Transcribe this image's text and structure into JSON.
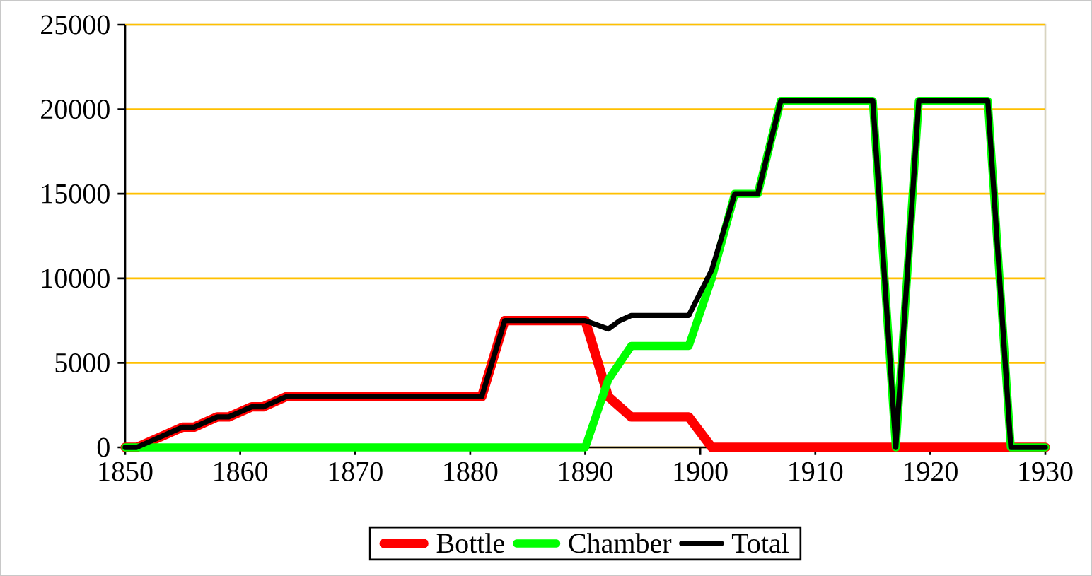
{
  "chart_data": {
    "type": "line",
    "xlim": [
      1850,
      1930
    ],
    "xticks": [
      1850,
      1860,
      1870,
      1880,
      1890,
      1900,
      1910,
      1920,
      1930
    ],
    "ylim": [
      0,
      25000
    ],
    "yticks": [
      0,
      5000,
      10000,
      15000,
      20000,
      25000
    ],
    "grid": "y",
    "legend": "bottom",
    "marker": "none",
    "line_style": "solid",
    "series": [
      {
        "name": "Bottle",
        "color": "#ff0000",
        "x": [
          1850,
          1851,
          1855,
          1856,
          1858,
          1859,
          1861,
          1862,
          1864,
          1881,
          1883,
          1890,
          1892,
          1894,
          1899,
          1901,
          1930
        ],
        "values": [
          0,
          0,
          1200,
          1200,
          1800,
          1800,
          2400,
          2400,
          3000,
          3000,
          7500,
          7500,
          3000,
          1800,
          1800,
          0,
          0
        ]
      },
      {
        "name": "Chamber",
        "color": "#00ff00",
        "x": [
          1850,
          1890,
          1892,
          1894,
          1899,
          1901,
          1903,
          1905,
          1907,
          1915,
          1917,
          1919,
          1925,
          1927,
          1930
        ],
        "values": [
          0,
          0,
          4000,
          6000,
          6000,
          10000,
          15000,
          15000,
          20500,
          20500,
          0,
          20500,
          20500,
          0,
          0
        ]
      },
      {
        "name": "Total",
        "color": "#000000",
        "x": [
          1850,
          1851,
          1855,
          1856,
          1858,
          1859,
          1861,
          1862,
          1864,
          1881,
          1883,
          1890,
          1892,
          1893,
          1894,
          1899,
          1901,
          1903,
          1905,
          1907,
          1915,
          1917,
          1919,
          1925,
          1927,
          1930
        ],
        "values": [
          0,
          0,
          1200,
          1200,
          1800,
          1800,
          2400,
          2400,
          3000,
          3000,
          7500,
          7500,
          7000,
          7500,
          7800,
          7800,
          10500,
          15000,
          15000,
          20500,
          20500,
          0,
          20500,
          20500,
          0,
          0
        ]
      }
    ]
  }
}
